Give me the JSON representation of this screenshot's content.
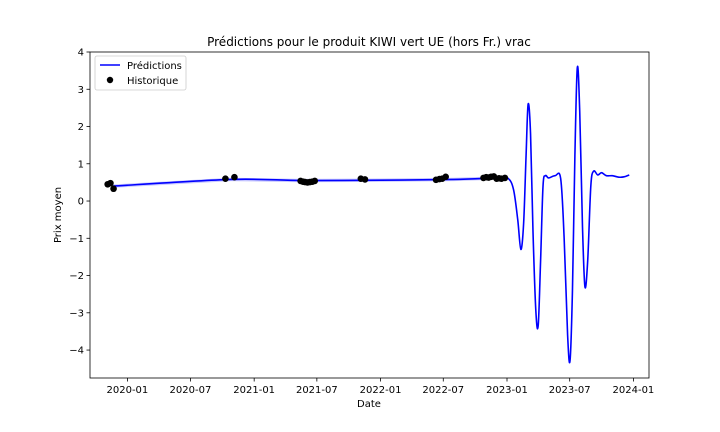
{
  "chart_data": {
    "type": "line",
    "title": "Prédictions pour le produit KIWI vert UE (hors Fr.) vrac",
    "xlabel": "Date",
    "ylabel": "Prix moyen",
    "xlim": [
      "2019-09-15",
      "2024-02-15"
    ],
    "ylim": [
      -4.75,
      4.0
    ],
    "yticks": [
      -4,
      -3,
      -2,
      -1,
      0,
      1,
      2,
      3,
      4
    ],
    "ytick_labels": [
      "−4",
      "−3",
      "−2",
      "−1",
      "0",
      "1",
      "2",
      "3",
      "4"
    ],
    "xticks": [
      "2020-01-01",
      "2020-07-01",
      "2021-01-01",
      "2021-07-01",
      "2022-01-01",
      "2022-07-01",
      "2023-01-01",
      "2023-07-01",
      "2024-01-01"
    ],
    "xtick_labels": [
      "2020-01",
      "2020-07",
      "2021-01",
      "2021-07",
      "2022-01",
      "2022-07",
      "2023-01",
      "2023-07",
      "2024-01"
    ],
    "legend": {
      "position": "top-left",
      "entries": [
        "Prédictions",
        "Historique"
      ]
    },
    "colors": {
      "prediction": "#0000ff",
      "band": "#b0b0ff",
      "history": "#000000"
    },
    "series": [
      {
        "name": "Prédictions",
        "kind": "line",
        "points": [
          [
            "2019-11-20",
            0.4
          ],
          [
            "2020-10-25",
            0.58
          ],
          [
            "2021-05-20",
            0.55
          ],
          [
            "2022-01-01",
            0.56
          ],
          [
            "2022-08-01",
            0.58
          ],
          [
            "2022-12-10",
            0.62
          ],
          [
            "2023-01-05",
            0.6
          ],
          [
            "2023-01-20",
            0.3
          ],
          [
            "2023-02-01",
            -0.5
          ],
          [
            "2023-02-10",
            -1.3
          ],
          [
            "2023-02-18",
            -0.6
          ],
          [
            "2023-02-25",
            1.2
          ],
          [
            "2023-03-03",
            2.6
          ],
          [
            "2023-03-10",
            1.8
          ],
          [
            "2023-03-17",
            -0.8
          ],
          [
            "2023-03-25",
            -2.9
          ],
          [
            "2023-04-01",
            -3.35
          ],
          [
            "2023-04-08",
            -1.6
          ],
          [
            "2023-04-15",
            0.4
          ],
          [
            "2023-04-22",
            0.68
          ],
          [
            "2023-05-01",
            0.62
          ],
          [
            "2023-05-20",
            0.68
          ],
          [
            "2023-06-05",
            0.6
          ],
          [
            "2023-06-15",
            -1.0
          ],
          [
            "2023-06-25",
            -3.6
          ],
          [
            "2023-07-02",
            -4.28
          ],
          [
            "2023-07-09",
            -2.4
          ],
          [
            "2023-07-16",
            1.2
          ],
          [
            "2023-07-23",
            3.58
          ],
          [
            "2023-07-30",
            2.4
          ],
          [
            "2023-08-07",
            -0.7
          ],
          [
            "2023-08-14",
            -2.3
          ],
          [
            "2023-08-22",
            -1.6
          ],
          [
            "2023-08-31",
            0.4
          ],
          [
            "2023-09-08",
            0.8
          ],
          [
            "2023-09-20",
            0.7
          ],
          [
            "2023-10-01",
            0.76
          ],
          [
            "2023-10-15",
            0.68
          ],
          [
            "2023-11-01",
            0.68
          ],
          [
            "2023-11-20",
            0.64
          ],
          [
            "2023-12-05",
            0.65
          ],
          [
            "2023-12-20",
            0.7
          ]
        ]
      },
      {
        "name": "Historique",
        "kind": "scatter",
        "points": [
          [
            "2019-11-05",
            0.45
          ],
          [
            "2019-11-13",
            0.48
          ],
          [
            "2019-11-22",
            0.33
          ],
          [
            "2020-10-10",
            0.6
          ],
          [
            "2020-11-05",
            0.64
          ],
          [
            "2021-05-15",
            0.54
          ],
          [
            "2021-05-22",
            0.52
          ],
          [
            "2021-05-28",
            0.51
          ],
          [
            "2021-06-04",
            0.5
          ],
          [
            "2021-06-11",
            0.51
          ],
          [
            "2021-06-18",
            0.52
          ],
          [
            "2021-06-25",
            0.54
          ],
          [
            "2021-11-05",
            0.6
          ],
          [
            "2021-11-17",
            0.58
          ],
          [
            "2022-06-10",
            0.57
          ],
          [
            "2022-06-20",
            0.59
          ],
          [
            "2022-06-28",
            0.6
          ],
          [
            "2022-07-08",
            0.65
          ],
          [
            "2022-10-25",
            0.62
          ],
          [
            "2022-11-02",
            0.64
          ],
          [
            "2022-11-09",
            0.63
          ],
          [
            "2022-11-16",
            0.65
          ],
          [
            "2022-11-24",
            0.66
          ],
          [
            "2022-12-02",
            0.6
          ],
          [
            "2022-12-09",
            0.61
          ],
          [
            "2022-12-16",
            0.6
          ],
          [
            "2022-12-26",
            0.62
          ]
        ]
      }
    ]
  }
}
